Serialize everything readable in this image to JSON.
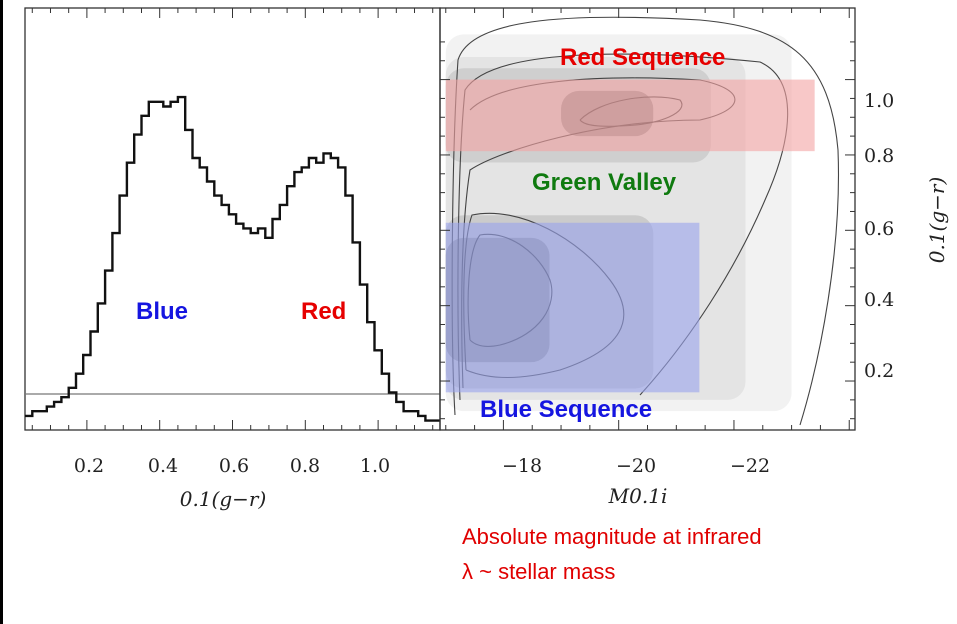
{
  "chart_data": [
    {
      "type": "line",
      "chart_style": "step histogram",
      "x_tick_labels": [
        "0.2",
        "0.4",
        "0.6",
        "0.8",
        "1.0"
      ],
      "xlabel": "0.1(g−r)",
      "xlim": [
        0.03,
        1.17
      ],
      "x": [
        0.03,
        0.05,
        0.07,
        0.09,
        0.11,
        0.13,
        0.15,
        0.17,
        0.19,
        0.21,
        0.23,
        0.25,
        0.27,
        0.29,
        0.31,
        0.33,
        0.35,
        0.37,
        0.39,
        0.41,
        0.43,
        0.45,
        0.47,
        0.49,
        0.51,
        0.53,
        0.55,
        0.57,
        0.59,
        0.61,
        0.63,
        0.65,
        0.67,
        0.69,
        0.71,
        0.73,
        0.75,
        0.77,
        0.79,
        0.81,
        0.83,
        0.85,
        0.87,
        0.89,
        0.91,
        0.93,
        0.95,
        0.97,
        0.99,
        1.01,
        1.03,
        1.05,
        1.07,
        1.09,
        1.11,
        1.13,
        1.15
      ],
      "values": [
        0.03,
        0.04,
        0.04,
        0.05,
        0.06,
        0.07,
        0.09,
        0.12,
        0.16,
        0.21,
        0.27,
        0.34,
        0.42,
        0.5,
        0.57,
        0.63,
        0.67,
        0.7,
        0.7,
        0.69,
        0.7,
        0.71,
        0.64,
        0.58,
        0.56,
        0.53,
        0.5,
        0.48,
        0.46,
        0.44,
        0.43,
        0.42,
        0.43,
        0.41,
        0.45,
        0.48,
        0.52,
        0.55,
        0.56,
        0.58,
        0.57,
        0.59,
        0.58,
        0.56,
        0.5,
        0.4,
        0.31,
        0.23,
        0.17,
        0.12,
        0.08,
        0.06,
        0.04,
        0.04,
        0.03,
        0.02,
        0.02
      ],
      "baseline": 0.005,
      "ylim": [
        0,
        0.9
      ],
      "annotations": [
        {
          "text": "Blue",
          "color": "#1515e0"
        },
        {
          "text": "Red",
          "color": "#e60000"
        }
      ]
    },
    {
      "type": "heatmap",
      "chart_style": "contour density",
      "xlabel": "M0.1i",
      "x_tick_labels": [
        "−18",
        "−20",
        "−22"
      ],
      "xlim": [
        -16.9,
        -24.1
      ],
      "ylabel": "0.1(g−r)",
      "y_tick_labels": [
        "1.0",
        "0.8",
        "0.6",
        "0.4",
        "0.2"
      ],
      "ylim": [
        0.07,
        1.19
      ],
      "regions": [
        {
          "label": "Red Sequence",
          "color": "#f4a3a3",
          "x_range": [
            -17.0,
            -23.4
          ],
          "y_range": [
            0.81,
            1.0
          ]
        },
        {
          "label": "Blue Sequence",
          "color": "#9aa4ec",
          "x_range": [
            -17.0,
            -21.4
          ],
          "y_range": [
            0.17,
            0.62
          ]
        }
      ],
      "annotations": [
        {
          "text": "Red Sequence",
          "color": "#e60000"
        },
        {
          "text": "Green Valley",
          "color": "#0f7a0f"
        },
        {
          "text": "Blue Sequence",
          "color": "#1515e0"
        }
      ]
    }
  ],
  "note_lines": [
    "Absolute magnitude at infrared",
    "λ ~ stellar mass"
  ]
}
